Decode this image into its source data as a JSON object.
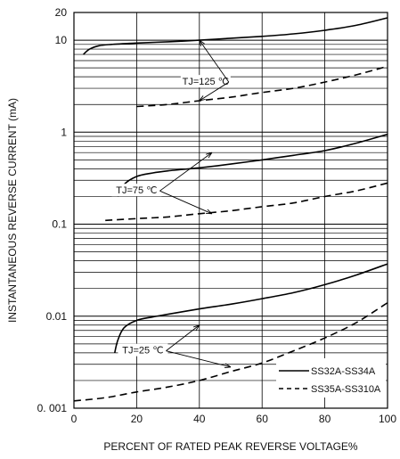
{
  "chart_data": {
    "type": "line",
    "title": "",
    "xlabel": "PERCENT OF RATED PEAK REVERSE VOLTAGE%",
    "ylabel": "INSTANTANEOUS REVERSE CURRENT  (mA)",
    "xlim": [
      0,
      100
    ],
    "ylim": [
      0.001,
      20
    ],
    "yscale": "log",
    "grid": true,
    "legend_position": "bottom-right",
    "x_ticks": [
      0,
      20,
      40,
      60,
      80,
      100
    ],
    "x_tick_labels": [
      "0",
      "20",
      "40",
      "60",
      "80",
      "100"
    ],
    "y_ticks": [
      0.001,
      0.01,
      0.1,
      1,
      10,
      20
    ],
    "y_tick_labels": [
      "0. 001",
      "0.01",
      "0.1",
      "1",
      "10",
      "20"
    ],
    "legend": [
      {
        "label": "SS32A-SS34A",
        "style": "solid"
      },
      {
        "label": "SS35A-SS310A",
        "style": "dashed"
      }
    ],
    "annotations": [
      {
        "text": "TJ=125 ℃",
        "points_to": [
          [
            40,
            10
          ],
          [
            40,
            2.2
          ]
        ]
      },
      {
        "text": "TJ=75 ℃",
        "points_to": [
          [
            44,
            0.6
          ],
          [
            44,
            0.13
          ]
        ]
      },
      {
        "text": "TJ=25 ℃",
        "points_to": [
          [
            40,
            0.008
          ],
          [
            50,
            0.0028
          ]
        ]
      }
    ],
    "series": [
      {
        "style": "solid",
        "temperature": "TJ=125 ℃",
        "x": [
          3,
          5,
          8,
          12,
          20,
          30,
          40,
          50,
          60,
          70,
          80,
          90,
          100
        ],
        "y": [
          7.0,
          8.0,
          8.7,
          9.0,
          9.3,
          9.6,
          10.0,
          10.5,
          11.0,
          11.7,
          12.8,
          14.5,
          17.5
        ]
      },
      {
        "style": "dashed",
        "temperature": "TJ=125 ℃",
        "x": [
          20,
          30,
          40,
          50,
          60,
          70,
          80,
          90,
          100
        ],
        "y": [
          1.9,
          2.0,
          2.2,
          2.4,
          2.7,
          3.0,
          3.5,
          4.2,
          5.2
        ]
      },
      {
        "style": "solid",
        "temperature": "TJ=75 ℃",
        "x": [
          14,
          16,
          20,
          25,
          30,
          40,
          50,
          60,
          70,
          80,
          90,
          100
        ],
        "y": [
          0.2,
          0.27,
          0.33,
          0.36,
          0.38,
          0.41,
          0.45,
          0.5,
          0.56,
          0.63,
          0.76,
          0.95
        ]
      },
      {
        "style": "dashed",
        "temperature": "TJ=75 ℃",
        "x": [
          10,
          20,
          30,
          40,
          50,
          60,
          70,
          80,
          90,
          100
        ],
        "y": [
          0.11,
          0.115,
          0.12,
          0.13,
          0.14,
          0.155,
          0.17,
          0.2,
          0.23,
          0.28
        ]
      },
      {
        "style": "solid",
        "temperature": "TJ=25 ℃",
        "x": [
          13,
          14,
          16,
          20,
          25,
          30,
          40,
          50,
          60,
          70,
          80,
          90,
          100
        ],
        "y": [
          0.004,
          0.0055,
          0.0075,
          0.009,
          0.0098,
          0.0105,
          0.012,
          0.0135,
          0.0155,
          0.018,
          0.022,
          0.028,
          0.037
        ]
      },
      {
        "style": "dashed",
        "temperature": "TJ=25 ℃",
        "x": [
          0,
          10,
          20,
          30,
          40,
          50,
          60,
          70,
          80,
          90,
          100
        ],
        "y": [
          0.0012,
          0.0013,
          0.0015,
          0.0017,
          0.002,
          0.0025,
          0.0031,
          0.0042,
          0.0058,
          0.0085,
          0.014
        ]
      }
    ]
  }
}
